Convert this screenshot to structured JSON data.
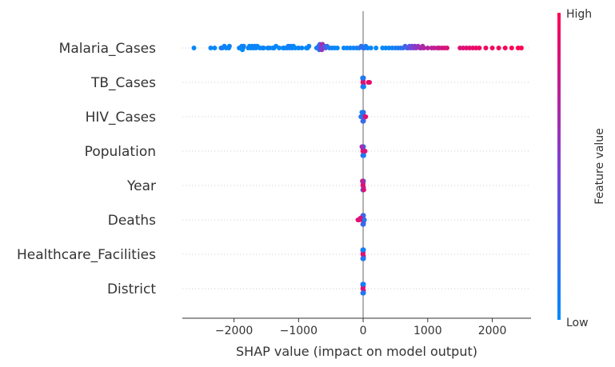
{
  "chart_data": {
    "type": "scatter",
    "subtype": "shap-beeswarm",
    "xlabel": "SHAP value (impact on model output)",
    "xlim": [
      -2800,
      2600
    ],
    "xticks": [
      -2000,
      -1000,
      0,
      1000,
      2000
    ],
    "xtick_labels": [
      "−2000",
      "−1000",
      "0",
      "1000",
      "2000"
    ],
    "features": [
      {
        "name": "Malaria_Cases",
        "points": [
          [
            -2620,
            0.02
          ],
          [
            -2360,
            0.03
          ],
          [
            -2300,
            0.02
          ],
          [
            -2200,
            0.08
          ],
          [
            -2180,
            0.1
          ],
          [
            -2150,
            0.05
          ],
          [
            -2120,
            0.03
          ],
          [
            -2080,
            0.04
          ],
          [
            -2070,
            0.06
          ],
          [
            -1920,
            0.06
          ],
          [
            -1900,
            0.04
          ],
          [
            -1880,
            0.02
          ],
          [
            -1870,
            0.01
          ],
          [
            -1860,
            0.0
          ],
          [
            -1850,
            0.08
          ],
          [
            -1780,
            0.05
          ],
          [
            -1760,
            0.03
          ],
          [
            -1740,
            0.01
          ],
          [
            -1720,
            0.02
          ],
          [
            -1700,
            0.05
          ],
          [
            -1680,
            0.08
          ],
          [
            -1660,
            0.06
          ],
          [
            -1640,
            0.03
          ],
          [
            -1600,
            0.01
          ],
          [
            -1560,
            0.04
          ],
          [
            -1540,
            0.06
          ],
          [
            -1480,
            0.02
          ],
          [
            -1450,
            0.04
          ],
          [
            -1400,
            0.06
          ],
          [
            -1380,
            0.05
          ],
          [
            -1350,
            0.03
          ],
          [
            -1300,
            0.01
          ],
          [
            -1240,
            0.05
          ],
          [
            -1220,
            0.03
          ],
          [
            -1180,
            0.06
          ],
          [
            -1160,
            0.08
          ],
          [
            -1140,
            0.04
          ],
          [
            -1120,
            0.1
          ],
          [
            -1100,
            0.06
          ],
          [
            -1080,
            0.02
          ],
          [
            -1050,
            0.02
          ],
          [
            -1000,
            0.03
          ],
          [
            -950,
            0.04
          ],
          [
            -880,
            0.02
          ],
          [
            -860,
            0.03
          ],
          [
            -840,
            0.05
          ],
          [
            -720,
            0.07
          ],
          [
            -700,
            0.09
          ],
          [
            -690,
            0.12
          ],
          [
            -680,
            0.18
          ],
          [
            -670,
            0.28
          ],
          [
            -660,
            0.4
          ],
          [
            -650,
            0.5
          ],
          [
            -640,
            0.6
          ],
          [
            -630,
            0.7
          ],
          [
            -620,
            0.55
          ],
          [
            -600,
            0.42
          ],
          [
            -580,
            0.3
          ],
          [
            -560,
            0.2
          ],
          [
            -520,
            0.12
          ],
          [
            -480,
            0.06
          ],
          [
            -440,
            0.04
          ],
          [
            -400,
            0.03
          ],
          [
            -300,
            0.02
          ],
          [
            -250,
            0.03
          ],
          [
            -200,
            0.04
          ],
          [
            -150,
            0.05
          ],
          [
            -100,
            0.08
          ],
          [
            -60,
            0.12
          ],
          [
            -30,
            0.18
          ],
          [
            0,
            0.22
          ],
          [
            20,
            0.16
          ],
          [
            40,
            0.1
          ],
          [
            70,
            0.06
          ],
          [
            120,
            0.03
          ],
          [
            200,
            0.02
          ],
          [
            300,
            0.03
          ],
          [
            350,
            0.04
          ],
          [
            400,
            0.05
          ],
          [
            450,
            0.06
          ],
          [
            500,
            0.08
          ],
          [
            540,
            0.1
          ],
          [
            580,
            0.14
          ],
          [
            620,
            0.2
          ],
          [
            650,
            0.26
          ],
          [
            680,
            0.3
          ],
          [
            700,
            0.34
          ],
          [
            720,
            0.38
          ],
          [
            740,
            0.42
          ],
          [
            760,
            0.46
          ],
          [
            780,
            0.5
          ],
          [
            800,
            0.55
          ],
          [
            820,
            0.58
          ],
          [
            850,
            0.6
          ],
          [
            880,
            0.63
          ],
          [
            900,
            0.66
          ],
          [
            920,
            0.68
          ],
          [
            940,
            0.7
          ],
          [
            1000,
            0.72
          ],
          [
            1060,
            0.74
          ],
          [
            1100,
            0.76
          ],
          [
            1150,
            0.78
          ],
          [
            1180,
            0.8
          ],
          [
            1220,
            0.82
          ],
          [
            1260,
            0.84
          ],
          [
            1300,
            0.85
          ],
          [
            1500,
            0.86
          ],
          [
            1550,
            0.88
          ],
          [
            1600,
            0.89
          ],
          [
            1650,
            0.9
          ],
          [
            1700,
            0.91
          ],
          [
            1750,
            0.92
          ],
          [
            1800,
            0.93
          ],
          [
            1900,
            0.94
          ],
          [
            2000,
            0.95
          ],
          [
            2100,
            0.96
          ],
          [
            2200,
            0.97
          ],
          [
            2300,
            0.98
          ],
          [
            2400,
            0.99
          ],
          [
            2450,
            1.0
          ]
        ]
      },
      {
        "name": "TB_Cases",
        "points": [
          [
            -5,
            0.95
          ],
          [
            0,
            0.9
          ],
          [
            5,
            0.85
          ],
          [
            -5,
            0.8
          ],
          [
            5,
            0.75
          ],
          [
            0,
            0.7
          ],
          [
            -5,
            0.6
          ],
          [
            5,
            0.55
          ],
          [
            0,
            0.5
          ],
          [
            -5,
            0.45
          ],
          [
            5,
            0.4
          ],
          [
            0,
            0.35
          ],
          [
            -5,
            0.3
          ],
          [
            5,
            0.25
          ],
          [
            0,
            0.2
          ],
          [
            -10,
            0.1
          ],
          [
            10,
            0.05
          ],
          [
            80,
            0.92
          ],
          [
            100,
            0.9
          ]
        ]
      },
      {
        "name": "HIV_Cases",
        "points": [
          [
            -5,
            0.95
          ],
          [
            0,
            0.9
          ],
          [
            5,
            0.85
          ],
          [
            -5,
            0.8
          ],
          [
            5,
            0.75
          ],
          [
            0,
            0.7
          ],
          [
            -5,
            0.6
          ],
          [
            5,
            0.55
          ],
          [
            0,
            0.5
          ],
          [
            -5,
            0.45
          ],
          [
            5,
            0.4
          ],
          [
            0,
            0.35
          ],
          [
            -5,
            0.3
          ],
          [
            5,
            0.25
          ],
          [
            0,
            0.2
          ],
          [
            -20,
            0.1
          ],
          [
            -35,
            0.15
          ],
          [
            40,
            0.88
          ]
        ]
      },
      {
        "name": "Population",
        "points": [
          [
            -5,
            0.95
          ],
          [
            0,
            0.9
          ],
          [
            5,
            0.85
          ],
          [
            -5,
            0.8
          ],
          [
            5,
            0.75
          ],
          [
            0,
            0.7
          ],
          [
            -5,
            0.6
          ],
          [
            5,
            0.55
          ],
          [
            0,
            0.5
          ],
          [
            -5,
            0.45
          ],
          [
            5,
            0.4
          ],
          [
            0,
            0.35
          ],
          [
            -5,
            0.3
          ],
          [
            5,
            0.25
          ],
          [
            0,
            0.2
          ],
          [
            -10,
            0.15
          ],
          [
            10,
            0.1
          ],
          [
            30,
            0.85
          ],
          [
            -20,
            0.65
          ]
        ]
      },
      {
        "name": "Year",
        "points": [
          [
            -5,
            0.95
          ],
          [
            0,
            0.9
          ],
          [
            5,
            0.85
          ],
          [
            -5,
            0.8
          ],
          [
            5,
            0.75
          ],
          [
            0,
            0.7
          ],
          [
            -5,
            0.6
          ],
          [
            5,
            0.55
          ],
          [
            0,
            0.5
          ],
          [
            -5,
            0.45
          ],
          [
            5,
            0.4
          ],
          [
            0,
            0.35
          ],
          [
            -5,
            0.3
          ],
          [
            5,
            0.25
          ],
          [
            0,
            0.2
          ],
          [
            -10,
            0.98
          ],
          [
            10,
            0.88
          ],
          [
            -12,
            0.75
          ]
        ]
      },
      {
        "name": "Deaths",
        "points": [
          [
            -5,
            0.95
          ],
          [
            0,
            0.9
          ],
          [
            5,
            0.85
          ],
          [
            -5,
            0.8
          ],
          [
            5,
            0.75
          ],
          [
            0,
            0.7
          ],
          [
            -5,
            0.6
          ],
          [
            5,
            0.55
          ],
          [
            0,
            0.5
          ],
          [
            -5,
            0.45
          ],
          [
            5,
            0.4
          ],
          [
            0,
            0.35
          ],
          [
            -5,
            0.3
          ],
          [
            5,
            0.25
          ],
          [
            0,
            0.2
          ],
          [
            -80,
            0.92
          ],
          [
            -60,
            0.88
          ],
          [
            -40,
            0.85
          ],
          [
            20,
            0.15
          ]
        ]
      },
      {
        "name": "Healthcare_Facilities",
        "points": [
          [
            -5,
            0.95
          ],
          [
            0,
            0.9
          ],
          [
            5,
            0.85
          ],
          [
            -5,
            0.8
          ],
          [
            5,
            0.75
          ],
          [
            0,
            0.7
          ],
          [
            -5,
            0.6
          ],
          [
            5,
            0.55
          ],
          [
            0,
            0.5
          ],
          [
            -5,
            0.45
          ],
          [
            5,
            0.4
          ],
          [
            0,
            0.35
          ],
          [
            -5,
            0.3
          ],
          [
            5,
            0.25
          ],
          [
            0,
            0.2
          ],
          [
            -5,
            0.15
          ],
          [
            5,
            0.1
          ],
          [
            0,
            0.05
          ]
        ]
      },
      {
        "name": "District",
        "points": [
          [
            -5,
            0.95
          ],
          [
            0,
            0.9
          ],
          [
            5,
            0.85
          ],
          [
            -5,
            0.8
          ],
          [
            5,
            0.75
          ],
          [
            0,
            0.7
          ],
          [
            -5,
            0.6
          ],
          [
            5,
            0.55
          ],
          [
            0,
            0.5
          ],
          [
            -5,
            0.45
          ],
          [
            5,
            0.4
          ],
          [
            0,
            0.35
          ],
          [
            -5,
            0.3
          ],
          [
            5,
            0.25
          ],
          [
            0,
            0.2
          ],
          [
            -5,
            0.15
          ],
          [
            5,
            0.1
          ],
          [
            0,
            0.05
          ]
        ]
      }
    ],
    "colorbar": {
      "label": "Feature value",
      "high_label": "High",
      "low_label": "Low",
      "low_color": "#008bfb",
      "mid_color": "#7c41d8",
      "high_color": "#ff0052"
    },
    "grid": false,
    "zero_line_color": "#999999"
  }
}
